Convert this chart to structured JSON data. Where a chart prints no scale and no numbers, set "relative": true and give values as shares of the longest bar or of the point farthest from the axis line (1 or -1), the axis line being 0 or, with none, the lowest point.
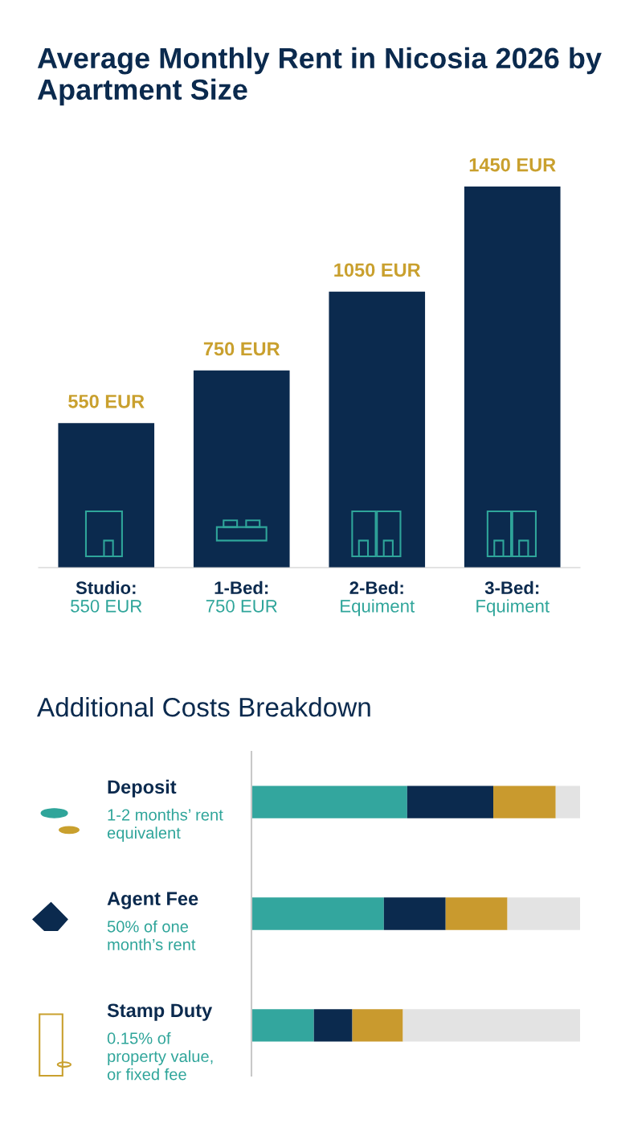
{
  "chart_data": [
    {
      "type": "bar",
      "title": "Average Monthly Rent in Nicosia 2026 by Apartment Size",
      "categories": [
        "Studio:\n550 EUR",
        "1-Bed:\n750 EUR",
        "2-Bed:\nEquiment",
        "3-Bed:\nFquiment"
      ],
      "tick_labels": "x",
      "series": [
        {
          "color": "#0b2a4e",
          "values": [
            550,
            750,
            1050,
            1450
          ],
          "value_labels": [
            "550 EUR",
            "750 EUR",
            "1050 EUR",
            "1450 EUR"
          ]
        }
      ]
    },
    {
      "type": "bar",
      "orientation": "horizontal",
      "stacked": true,
      "relative": true,
      "title": "Additional Costs Breakdown",
      "categories": [
        "Deposit\n1-2 months’ rent\nequivalent",
        "Agent Fee\n50% of one\nmonth’s rent",
        "Stamp Duty\n0.15% of\nproperty value,\nor fixed fee"
      ],
      "series": [
        {
          "color": "#33a69e",
          "values": [
            0.474,
            0.403,
            0.19
          ]
        },
        {
          "color": "#0b2a4e",
          "values": [
            0.262,
            0.188,
            0.117
          ]
        },
        {
          "color": "#c99a2e",
          "values": [
            0.19,
            0.188,
            0.154
          ]
        },
        {
          "color": "#e3e3e3",
          "values": [
            0.074,
            0.221,
            0.539
          ]
        }
      ]
    }
  ]
}
